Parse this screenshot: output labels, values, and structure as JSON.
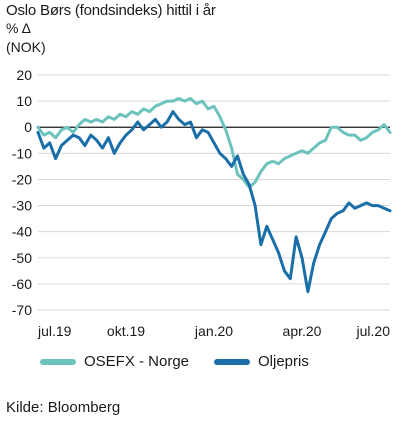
{
  "header": {
    "title": "Oslo Børs (fondsindeks) hittil i år",
    "unit_line1": "% Δ",
    "unit_line2": "(NOK)"
  },
  "source": "Kilde: Bloomberg",
  "chart_data": {
    "type": "line",
    "title": "Oslo Børs (fondsindeks) hittil i år",
    "ylabel": "% Δ (NOK)",
    "ylim": [
      -70,
      20
    ],
    "yticks": [
      20,
      10,
      0,
      -10,
      -20,
      -30,
      -40,
      -50,
      -60,
      -70
    ],
    "x_ticks": [
      {
        "label": "jul.19",
        "x": 0
      },
      {
        "label": "okt.19",
        "x": 3
      },
      {
        "label": "jan.20",
        "x": 6
      },
      {
        "label": "apr.20",
        "x": 9
      },
      {
        "label": "jul.20",
        "x": 12
      }
    ],
    "xlim": [
      0,
      12
    ],
    "grid": true,
    "legend_position": "bottom",
    "series": [
      {
        "name": "OSEFX - Norge",
        "color": "#6cc2bd",
        "points": [
          [
            0,
            0
          ],
          [
            0.2,
            -3
          ],
          [
            0.4,
            -2
          ],
          [
            0.6,
            -4
          ],
          [
            0.8,
            -1
          ],
          [
            1.0,
            0
          ],
          [
            1.2,
            -2
          ],
          [
            1.4,
            1
          ],
          [
            1.6,
            3
          ],
          [
            1.8,
            2
          ],
          [
            2.0,
            3
          ],
          [
            2.2,
            2
          ],
          [
            2.4,
            4
          ],
          [
            2.6,
            3
          ],
          [
            2.8,
            5
          ],
          [
            3.0,
            4
          ],
          [
            3.2,
            6
          ],
          [
            3.4,
            5
          ],
          [
            3.6,
            7
          ],
          [
            3.8,
            6
          ],
          [
            4.0,
            8
          ],
          [
            4.2,
            9
          ],
          [
            4.4,
            10
          ],
          [
            4.6,
            10
          ],
          [
            4.8,
            11
          ],
          [
            5.0,
            10
          ],
          [
            5.2,
            11
          ],
          [
            5.4,
            9
          ],
          [
            5.6,
            10
          ],
          [
            5.8,
            7
          ],
          [
            6.0,
            8
          ],
          [
            6.2,
            4
          ],
          [
            6.4,
            -1
          ],
          [
            6.6,
            -8
          ],
          [
            6.8,
            -18
          ],
          [
            7.0,
            -20
          ],
          [
            7.2,
            -23
          ],
          [
            7.4,
            -21
          ],
          [
            7.6,
            -17
          ],
          [
            7.8,
            -14
          ],
          [
            8.0,
            -13
          ],
          [
            8.2,
            -14
          ],
          [
            8.4,
            -12
          ],
          [
            8.6,
            -11
          ],
          [
            8.8,
            -10
          ],
          [
            9.0,
            -9
          ],
          [
            9.2,
            -10
          ],
          [
            9.4,
            -8
          ],
          [
            9.6,
            -6
          ],
          [
            9.8,
            -5
          ],
          [
            10.0,
            0
          ],
          [
            10.2,
            0
          ],
          [
            10.4,
            -2
          ],
          [
            10.6,
            -3
          ],
          [
            10.8,
            -3
          ],
          [
            11.0,
            -5
          ],
          [
            11.2,
            -4
          ],
          [
            11.4,
            -2
          ],
          [
            11.6,
            -1
          ],
          [
            11.8,
            1
          ],
          [
            12.0,
            -2
          ]
        ]
      },
      {
        "name": "Oljepris",
        "color": "#1a6fa8",
        "points": [
          [
            0,
            -2
          ],
          [
            0.2,
            -8
          ],
          [
            0.4,
            -6
          ],
          [
            0.6,
            -12
          ],
          [
            0.8,
            -7
          ],
          [
            1.0,
            -5
          ],
          [
            1.2,
            -3
          ],
          [
            1.4,
            -4
          ],
          [
            1.6,
            -7
          ],
          [
            1.8,
            -3
          ],
          [
            2.0,
            -5
          ],
          [
            2.2,
            -8
          ],
          [
            2.4,
            -4
          ],
          [
            2.6,
            -10
          ],
          [
            2.8,
            -6
          ],
          [
            3.0,
            -3
          ],
          [
            3.2,
            -1
          ],
          [
            3.4,
            2
          ],
          [
            3.6,
            -1
          ],
          [
            3.8,
            1
          ],
          [
            4.0,
            3
          ],
          [
            4.2,
            0
          ],
          [
            4.4,
            2
          ],
          [
            4.6,
            6
          ],
          [
            4.8,
            3
          ],
          [
            5.0,
            1
          ],
          [
            5.2,
            2
          ],
          [
            5.4,
            -4
          ],
          [
            5.6,
            -1
          ],
          [
            5.8,
            -2
          ],
          [
            6.0,
            -6
          ],
          [
            6.2,
            -10
          ],
          [
            6.4,
            -12
          ],
          [
            6.6,
            -15
          ],
          [
            6.8,
            -11
          ],
          [
            7.0,
            -18
          ],
          [
            7.2,
            -22
          ],
          [
            7.4,
            -30
          ],
          [
            7.6,
            -45
          ],
          [
            7.8,
            -38
          ],
          [
            8.0,
            -43
          ],
          [
            8.2,
            -48
          ],
          [
            8.4,
            -55
          ],
          [
            8.6,
            -58
          ],
          [
            8.8,
            -42
          ],
          [
            9.0,
            -50
          ],
          [
            9.2,
            -63
          ],
          [
            9.4,
            -52
          ],
          [
            9.6,
            -45
          ],
          [
            9.8,
            -40
          ],
          [
            10.0,
            -35
          ],
          [
            10.2,
            -33
          ],
          [
            10.4,
            -32
          ],
          [
            10.6,
            -29
          ],
          [
            10.8,
            -31
          ],
          [
            11.0,
            -30
          ],
          [
            11.2,
            -29
          ],
          [
            11.4,
            -30
          ],
          [
            11.6,
            -30
          ],
          [
            11.8,
            -31
          ],
          [
            12.0,
            -32
          ]
        ]
      }
    ]
  }
}
